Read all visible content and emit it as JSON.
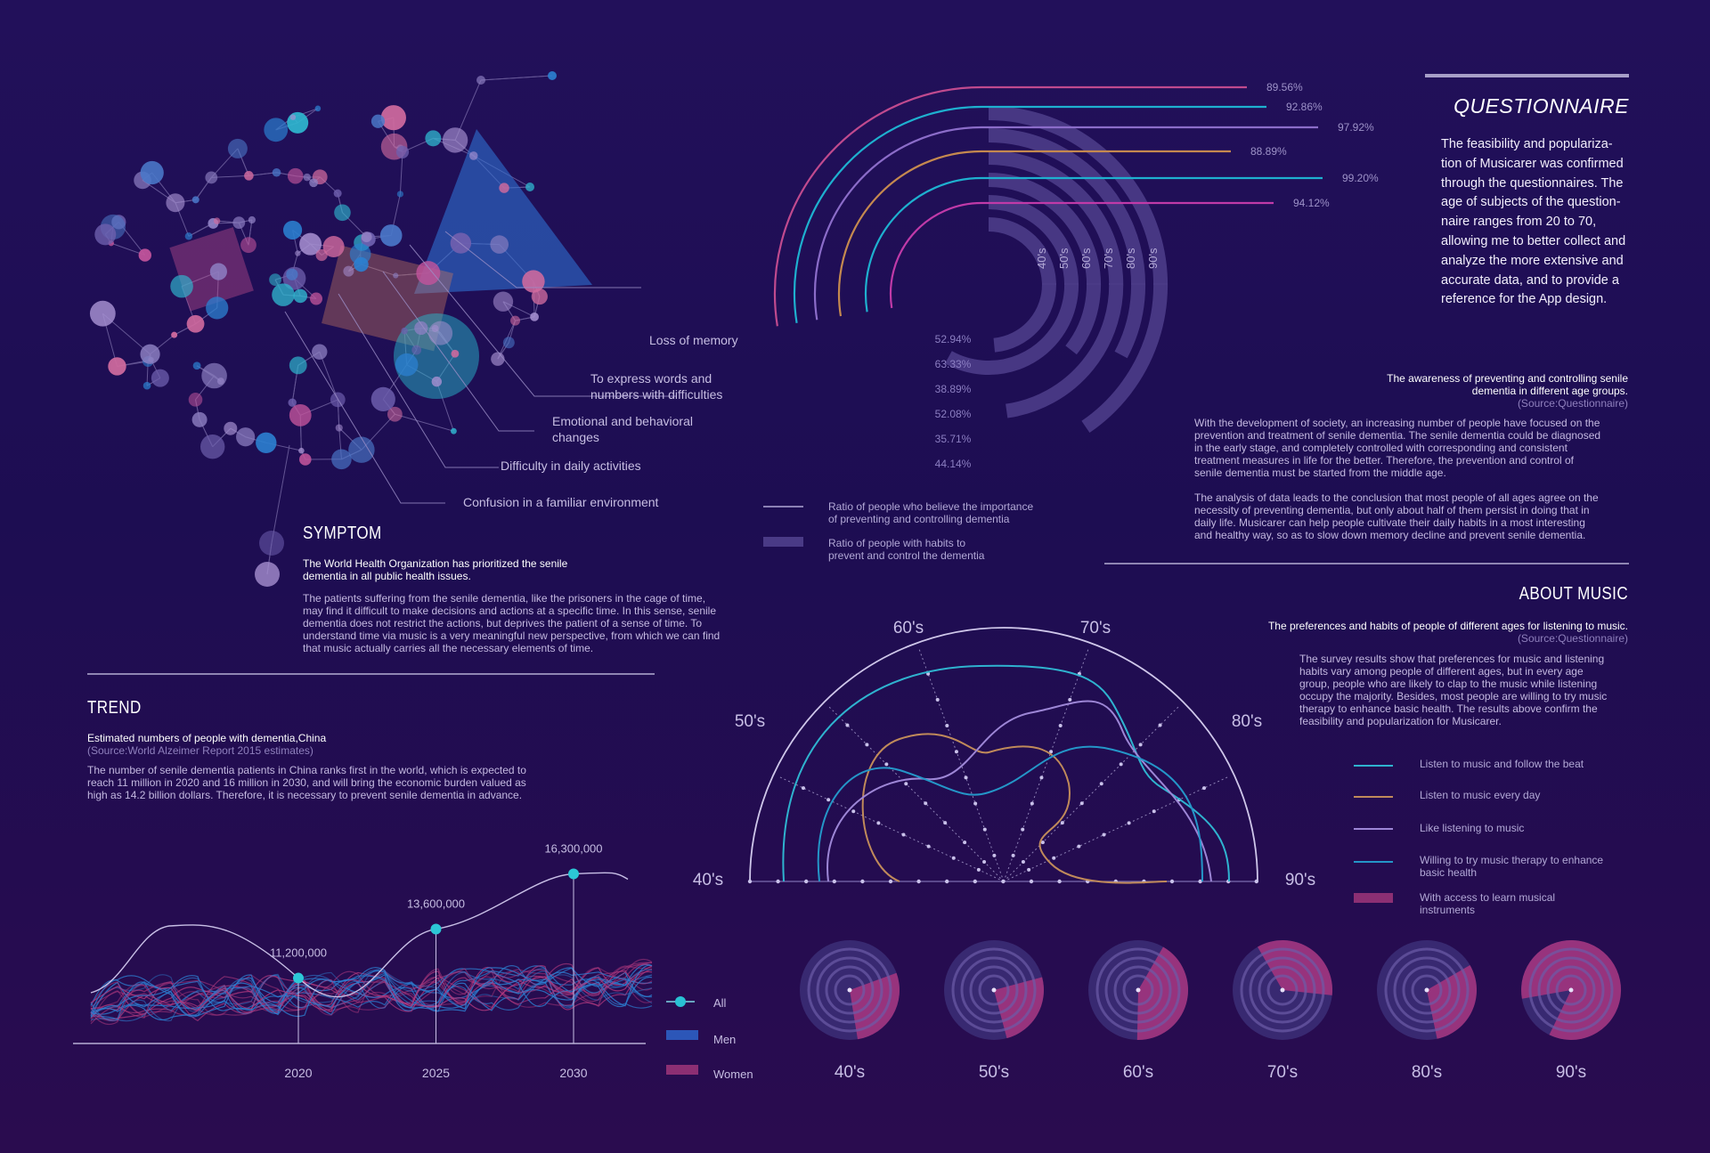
{
  "symptom": {
    "labels": [
      "Loss of memory",
      "To express words and",
      "numbers with difficulties",
      "Emotional and behavioral",
      "changes",
      "Difficulty in daily activities",
      "Confusion in a familiar environment"
    ],
    "title": "SYMPTOM",
    "subtitle_1": "The World Health Organization has prioritized the senile",
    "subtitle_2": "dementia in all public health issues.",
    "body": [
      "The patients suffering from the senile dementia, like the prisoners in the cage of time,",
      "may find it difficult to make decisions and actions at a specific time. In this sense, senile",
      "dementia does not restrict the actions, but deprives the patient of a sense of time. To",
      "understand time via music is a very meaningful new perspective, from which we can find",
      "that music actually carries all the necessary elements of time."
    ]
  },
  "trend": {
    "title": "TREND",
    "subtitle": "Estimated numbers of people with dementia,China",
    "source": "(Source:World Alzeimer Report 2015 estimates)",
    "body": [
      "The number of senile dementia patients in China ranks first in the world, which is expected to",
      "reach 11 million in 2020 and 16 million in 2030, and will bring the economic burden valued as",
      "high as 14.2 billion dollars. Therefore, it is necessary to prevent senile dementia in advance."
    ],
    "legend": {
      "all": "All",
      "men": "Men",
      "women": "Women"
    }
  },
  "questionnaire": {
    "title": "QUESTIONNAIRE",
    "text": [
      "The feasibility and populariza-",
      "tion of Musicarer was confirmed",
      "through the questionnaires. The",
      "age of subjects of the question-",
      "naire ranges from 20 to 70,",
      "allowing me to better collect and",
      "analyze the more extensive and",
      "accurate data, and to provide a",
      "reference for the App design."
    ],
    "chart_title_1": "The awareness of preventing and controlling senile",
    "chart_title_2": "dementia in different age groups.",
    "source": "(Source:Questionnaire)",
    "para1": [
      "With the development of society, an increasing number of people have focused on the",
      "prevention and treatment of senile dementia. The senile dementia could be diagnosed",
      "in the early stage, and completely controlled with corresponding and consistent",
      "treatment measures in life for the better. Therefore, the prevention and control of",
      "senile dementia must be started from the middle age."
    ],
    "para2": [
      "The analysis of data leads to the conclusion that most people of all ages agree on the",
      "necessity of preventing dementia, but only about half of them persist in doing that in",
      "daily life. Musicarer can help people cultivate their daily habits in a most interesting",
      "and healthy way, so as to slow down memory decline and prevent senile dementia."
    ],
    "legend_line_1": "Ratio of people who believe the importance",
    "legend_line_2": "of preventing and controlling dementia",
    "legend_bar_1": "Ratio of people with habits to",
    "legend_bar_2": "prevent and control the dementia"
  },
  "music": {
    "title": "ABOUT MUSIC",
    "subtitle": "The preferences and habits of people of different ages for listening to music.",
    "source": "(Source:Questionnaire)",
    "body": [
      "The survey results show that preferences for music and listening",
      "habits vary among people of different ages, but in every age",
      "group, people who are likely to clap to the music while listening",
      "occupy the majority. Besides, most people are willing to try music",
      "therapy to enhance basic health. The results above confirm the",
      "feasibility and popularization for Musicarer."
    ],
    "legend": [
      {
        "label": "Listen to music and follow the beat",
        "color": "#2fb3cf"
      },
      {
        "label": "Listen to music every day",
        "color": "#c08a5a"
      },
      {
        "label": "Like listening to music",
        "color": "#9d86d6"
      },
      {
        "label": "Willing to try music therapy to enhance",
        "label2": "basic health",
        "color": "#2496c8"
      },
      {
        "label": "With access to learn musical",
        "label2": "instruments",
        "color": "#8c2f73"
      }
    ]
  },
  "chart_data": [
    {
      "type": "line",
      "title": "Estimated numbers of people with dementia,China",
      "x": [
        2020,
        2025,
        2030
      ],
      "x_tick_labels": [
        "2020",
        "2025",
        "2030"
      ],
      "values": [
        11200000,
        13600000,
        16300000
      ],
      "value_labels": [
        "11,200,000",
        "13,600,000",
        "16,300,000"
      ],
      "series_names": [
        "All",
        "Men",
        "Women"
      ]
    },
    {
      "type": "bar",
      "title": "The awareness of preventing and controlling senile dementia in different age groups.",
      "categories": [
        "40's",
        "50's",
        "60's",
        "70's",
        "80's",
        "90's"
      ],
      "series": [
        {
          "name": "Ratio of people who believe the importance of preventing and controlling dementia",
          "values": [
            89.56,
            92.86,
            97.92,
            88.89,
            99.2,
            94.12
          ],
          "labels": [
            "89.56%",
            "92.86%",
            "97.92%",
            "88.89%",
            "99.20%",
            "94.12%"
          ],
          "colors": [
            "#c04a8e",
            "#1eb0cf",
            "#8b6cc9",
            "#c5894f",
            "#1eb0cf",
            "#c03aa8"
          ]
        },
        {
          "name": "Ratio of people with habits to prevent and control the dementia",
          "values": [
            52.94,
            63.33,
            38.89,
            52.08,
            35.71,
            44.14
          ],
          "labels": [
            "52.94%",
            "63.33%",
            "38.89%",
            "52.08%",
            "35.71%",
            "44.14%"
          ]
        }
      ]
    },
    {
      "type": "line",
      "title": "The preferences and habits of people of different ages for listening to music.",
      "categories": [
        "40's",
        "50's",
        "60's",
        "70's",
        "80's",
        "90's"
      ],
      "series_names": [
        "Listen to music and follow the beat",
        "Listen to music every day",
        "Like listening to music",
        "Willing to try music therapy to enhance basic health"
      ]
    },
    {
      "type": "pie",
      "title": "With access to learn musical instruments",
      "categories": [
        "40's",
        "50's",
        "60's",
        "70's",
        "80's",
        "90's"
      ],
      "values": [
        28,
        25,
        42,
        35,
        30,
        85
      ]
    }
  ]
}
